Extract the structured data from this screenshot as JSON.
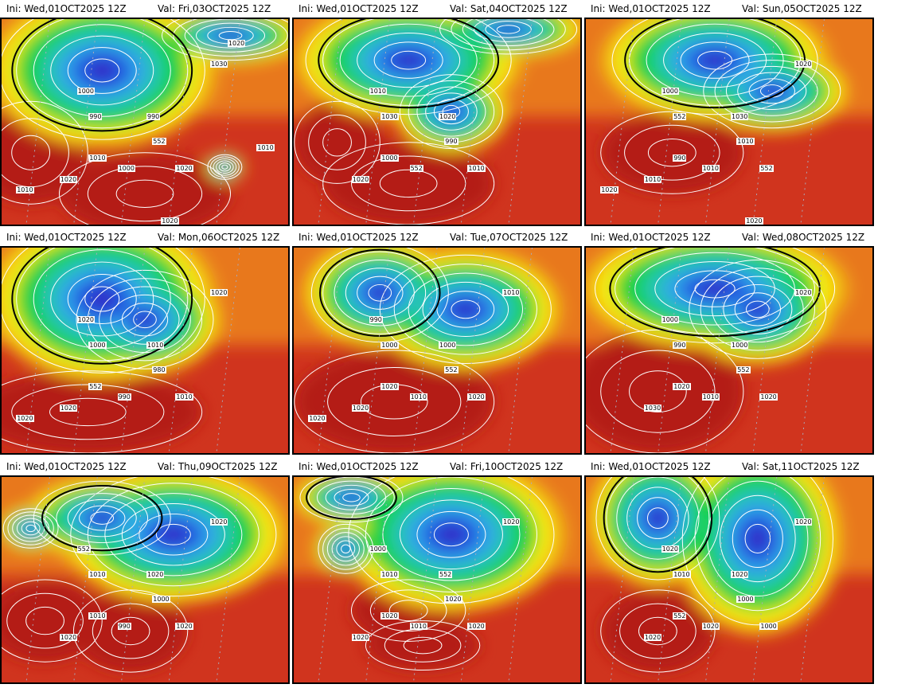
{
  "panels": [
    {
      "ini": "Ini: Wed,01OCT2025 12Z",
      "val": "Val: Fri,03OCT2025 12Z",
      "labels": [
        "1000",
        "990",
        "990",
        "552",
        "1000",
        "1010",
        "1020",
        "1020",
        "1030",
        "1010",
        "1020",
        "1010",
        "1020"
      ]
    },
    {
      "ini": "Ini: Wed,01OCT2025 12Z",
      "val": "Val: Sat,04OCT2025 12Z",
      "labels": [
        "1010",
        "1030",
        "1020",
        "990",
        "552",
        "1000",
        "1010",
        "1020"
      ]
    },
    {
      "ini": "Ini: Wed,01OCT2025 12Z",
      "val": "Val: Sun,05OCT2025 12Z",
      "labels": [
        "1000",
        "552",
        "1030",
        "1010",
        "1010",
        "990",
        "552",
        "1010",
        "1020",
        "1020",
        "1020"
      ]
    },
    {
      "ini": "Ini: Wed,01OCT2025 12Z",
      "val": "Val: Mon,06OCT2025 12Z",
      "labels": [
        "1020",
        "1000",
        "1010",
        "980",
        "990",
        "552",
        "1010",
        "1020",
        "1020",
        "1020"
      ]
    },
    {
      "ini": "Ini: Wed,01OCT2025 12Z",
      "val": "Val: Tue,07OCT2025 12Z",
      "labels": [
        "990",
        "1000",
        "1000",
        "552",
        "1010",
        "1020",
        "1020",
        "1020",
        "1010",
        "1020"
      ]
    },
    {
      "ini": "Ini: Wed,01OCT2025 12Z",
      "val": "Val: Wed,08OCT2025 12Z",
      "labels": [
        "1000",
        "990",
        "1000",
        "552",
        "1010",
        "1020",
        "1020",
        "1030",
        "1020"
      ]
    },
    {
      "ini": "Ini: Wed,01OCT2025 12Z",
      "val": "Val: Thu,09OCT2025 12Z",
      "labels": [
        "552",
        "1010",
        "1020",
        "1000",
        "990",
        "1010",
        "1020",
        "1020",
        "1020"
      ]
    },
    {
      "ini": "Ini: Wed,01OCT2025 12Z",
      "val": "Val: Fri,10OCT2025 12Z",
      "labels": [
        "1000",
        "1010",
        "552",
        "1020",
        "1010",
        "1020",
        "1020",
        "1020",
        "1020"
      ]
    },
    {
      "ini": "Ini: Wed,01OCT2025 12Z",
      "val": "Val: Sat,11OCT2025 12Z",
      "labels": [
        "1020",
        "1010",
        "1020",
        "1000",
        "1020",
        "552",
        "1000",
        "1020",
        "1020"
      ]
    }
  ],
  "colors": {
    "dark_red": "#b41c18",
    "red": "#d0341e",
    "orange": "#e8781a",
    "light_orange": "#f0a818",
    "yellow": "#f8ec10",
    "green": "#18d238",
    "teal": "#20c8a8",
    "cyan": "#30a8e8",
    "blue": "#2058e0",
    "dark_blue": "#3418c0",
    "isobar": "#ffffff"
  }
}
